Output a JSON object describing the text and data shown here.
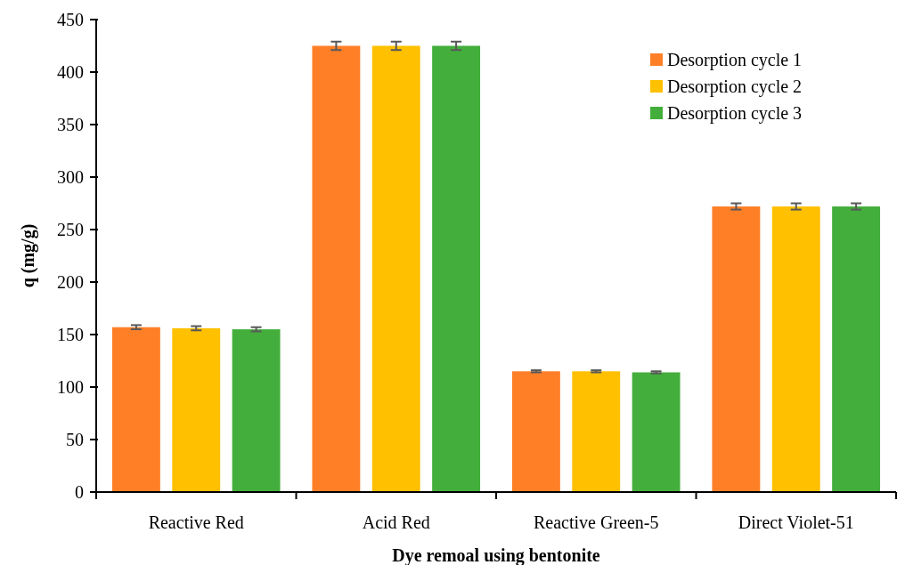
{
  "chart_data": {
    "type": "bar",
    "xlabel": "Dye remoal using bentonite",
    "ylabel": "q (mg/g)",
    "categories": [
      "Reactive Red",
      "Acid Red",
      "Reactive Green-5",
      "Direct Violet-51"
    ],
    "series": [
      {
        "name": "Desorption cycle 1",
        "color": "#ff7f27",
        "values": [
          157,
          425,
          115,
          272
        ],
        "errors": [
          2,
          4,
          1,
          3
        ]
      },
      {
        "name": "Desorption cycle 2",
        "color": "#ffc000",
        "values": [
          156,
          425,
          115,
          272
        ],
        "errors": [
          2,
          4,
          1,
          3
        ]
      },
      {
        "name": "Desorption cycle 3",
        "color": "#43ae3b",
        "values": [
          155,
          425,
          114,
          272
        ],
        "errors": [
          2,
          4,
          1,
          3
        ]
      }
    ],
    "ylim": [
      0,
      450
    ],
    "yticks": [
      0,
      50,
      100,
      150,
      200,
      250,
      300,
      350,
      400,
      450
    ],
    "grid": false,
    "legend": "top right"
  }
}
